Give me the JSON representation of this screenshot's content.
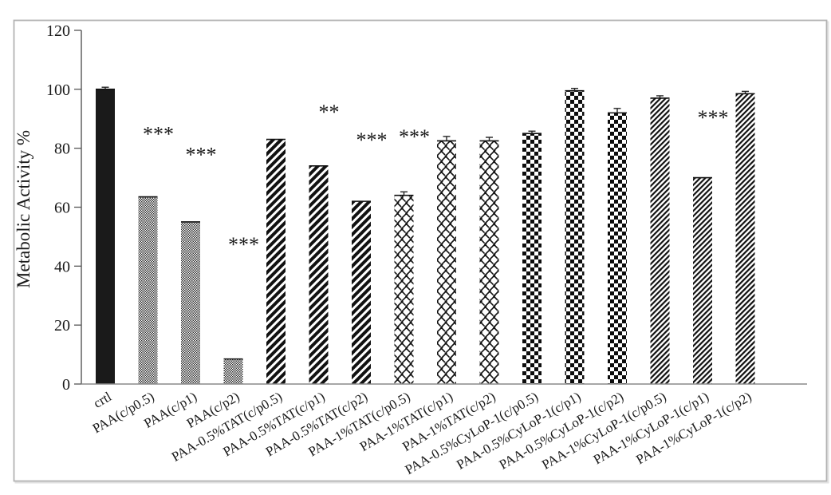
{
  "frame": {
    "border_color": "#b3b3b3",
    "background": "#ffffff"
  },
  "chart_data": {
    "type": "bar",
    "title": "",
    "xlabel": "",
    "ylabel": "Metabolic Activity %",
    "ylim": [
      0,
      120
    ],
    "yticks": [
      0,
      20,
      40,
      60,
      80,
      100,
      120
    ],
    "grid": false,
    "legend": "none",
    "bar_fill_color": "#1a1a1a",
    "categories": [
      "crtl",
      "PAA(c/p0.5)",
      "PAA(c/p1)",
      "PAA(c/p2)",
      "PAA-0.5%TAT(c/p0.5)",
      "PAA-0.5%TAT(c/p1)",
      "PAA-0.5%TAT(c/p2)",
      "PAA-1%TAT(c/p0.5)",
      "PAA-1%TAT(c/p1)",
      "PAA-1%TAT(c/p2)",
      "PAA-0.5%CyLoP-1(c/p0.5)",
      "PAA-0.5%CyLoP-1(c/p1)",
      "PAA-0.5%CyLoP-1(c/p2)",
      "PAA-1%CyLoP-1(c/p0.5)",
      "PAA-1%CyLoP-1(c/p1)",
      "PAA-1%CyLoP-1(c/p2)"
    ],
    "values": [
      100,
      63.5,
      55,
      8.5,
      83,
      74,
      62,
      64,
      82.5,
      82.5,
      85,
      99.5,
      92,
      97,
      70,
      98.5
    ],
    "patterns": [
      "solid",
      "stipple",
      "stipple",
      "stipple",
      "heavy-diagonal",
      "heavy-diagonal",
      "heavy-diagonal",
      "shingle",
      "shingle",
      "shingle",
      "checkerboard",
      "checkerboard",
      "checkerboard",
      "thin-diagonal",
      "thin-diagonal",
      "thin-diagonal"
    ],
    "error_bars": [
      0.7,
      0,
      0,
      0,
      0,
      0,
      0,
      1.2,
      1.5,
      1.2,
      0.8,
      0.8,
      1.5,
      0.8,
      0,
      0.8
    ],
    "significance_markers": [
      {
        "category_index": 1,
        "label": "***",
        "y": 86
      },
      {
        "category_index": 2,
        "label": "***",
        "y": 79
      },
      {
        "category_index": 3,
        "label": "***",
        "y": 48.5
      },
      {
        "category_index": 5,
        "label": "**",
        "y": 93.5
      },
      {
        "category_index": 6,
        "label": "***",
        "y": 84
      },
      {
        "category_index": 7,
        "label": "***",
        "y": 85
      },
      {
        "category_index": 14,
        "label": "***",
        "y": 91.5
      }
    ]
  }
}
